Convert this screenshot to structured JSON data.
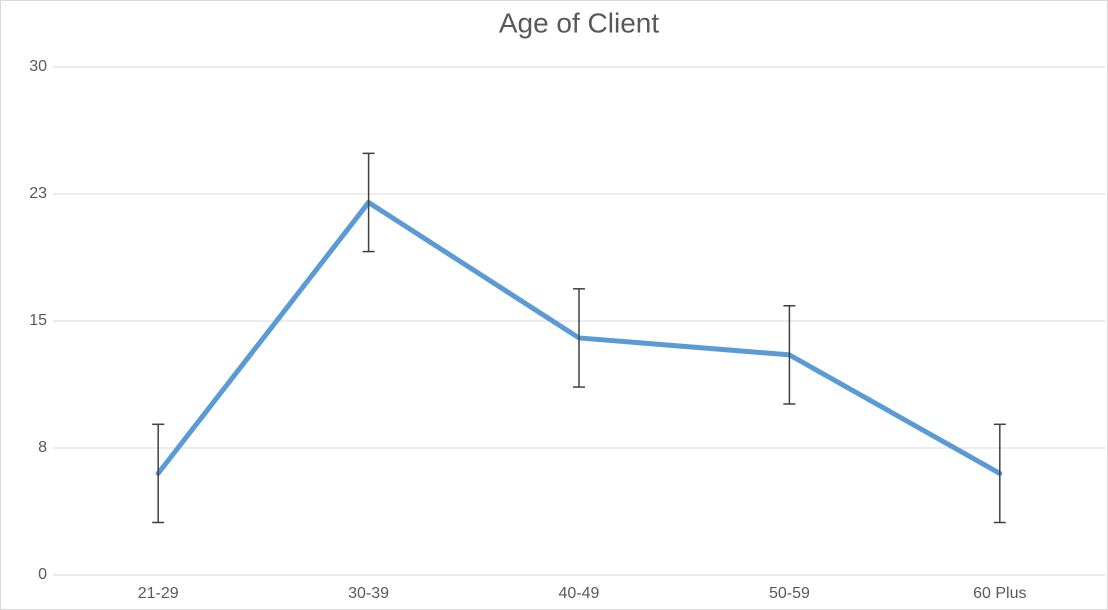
{
  "chart_data": {
    "type": "line",
    "title": "Age of Client",
    "categories": [
      "21-29",
      "30-39",
      "40-49",
      "50-59",
      "60 Plus"
    ],
    "values": [
      6,
      22,
      14,
      13,
      6
    ],
    "errors": [
      2.9,
      2.9,
      2.9,
      2.9,
      2.9
    ],
    "color": "#5b9bd5",
    "error_color": "#404040",
    "ylim": [
      0,
      30
    ],
    "yticks": [
      0,
      {
        "value": 7.5,
        "label": "8"
      },
      15,
      {
        "value": 22.5,
        "label": "23"
      },
      30
    ],
    "grid": true
  }
}
